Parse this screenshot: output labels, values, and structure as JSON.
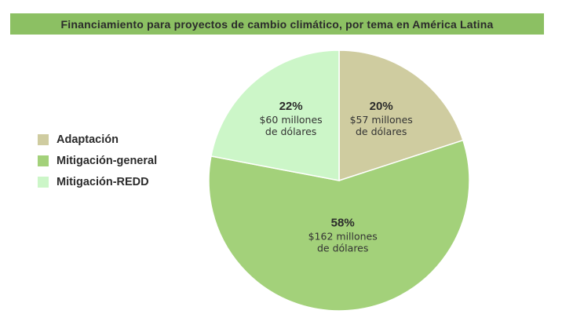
{
  "chart_data": {
    "type": "pie",
    "title": "Financiamiento para proyectos de cambio climático, por tema en América Latina",
    "legend_position": "left",
    "slices": [
      {
        "name": "Adaptación",
        "value": 20,
        "label_pct": "20%",
        "label_line1": "$57 millones",
        "label_line2": "de dólares",
        "color": "#cfcca0"
      },
      {
        "name": "Mitigación-general",
        "value": 58,
        "label_pct": "58%",
        "label_line1": "$162 millones",
        "label_line2": "de dólares",
        "color": "#a3d17a"
      },
      {
        "name": "Mitigación-REDD",
        "value": 22,
        "label_pct": "22%",
        "label_line1": "$60 millones",
        "label_line2": "de dólares",
        "color": "#ccf6c8"
      }
    ]
  }
}
